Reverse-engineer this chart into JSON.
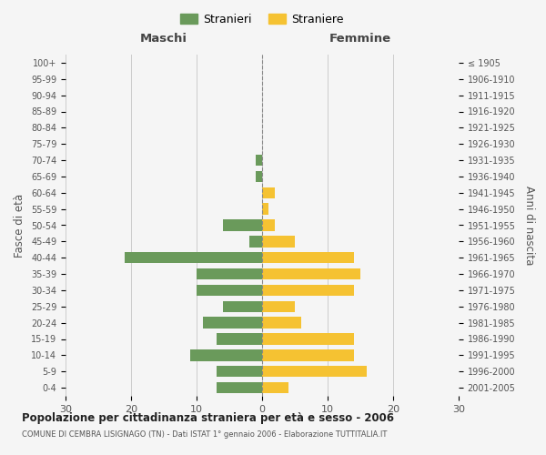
{
  "age_groups": [
    "0-4",
    "5-9",
    "10-14",
    "15-19",
    "20-24",
    "25-29",
    "30-34",
    "35-39",
    "40-44",
    "45-49",
    "50-54",
    "55-59",
    "60-64",
    "65-69",
    "70-74",
    "75-79",
    "80-84",
    "85-89",
    "90-94",
    "95-99",
    "100+"
  ],
  "birth_years": [
    "2001-2005",
    "1996-2000",
    "1991-1995",
    "1986-1990",
    "1981-1985",
    "1976-1980",
    "1971-1975",
    "1966-1970",
    "1961-1965",
    "1956-1960",
    "1951-1955",
    "1946-1950",
    "1941-1945",
    "1936-1940",
    "1931-1935",
    "1926-1930",
    "1921-1925",
    "1916-1920",
    "1911-1915",
    "1906-1910",
    "≤ 1905"
  ],
  "maschi": [
    7,
    7,
    11,
    7,
    9,
    6,
    10,
    10,
    21,
    2,
    6,
    0,
    0,
    1,
    1,
    0,
    0,
    0,
    0,
    0,
    0
  ],
  "femmine": [
    4,
    16,
    14,
    14,
    6,
    5,
    14,
    15,
    14,
    5,
    2,
    1,
    2,
    0,
    0,
    0,
    0,
    0,
    0,
    0,
    0
  ],
  "color_maschi": "#6a9a5b",
  "color_femmine": "#f5c232",
  "title": "Popolazione per cittadinanza straniera per età e sesso - 2006",
  "subtitle": "COMUNE DI CEMBRA LISIGNAGO (TN) - Dati ISTAT 1° gennaio 2006 - Elaborazione TUTTITALIA.IT",
  "xlabel_left": "Maschi",
  "xlabel_right": "Femmine",
  "ylabel_left": "Fasce di età",
  "ylabel_right": "Anni di nascita",
  "legend_maschi": "Stranieri",
  "legend_femmine": "Straniere",
  "xlim": 30,
  "bg_color": "#f5f5f5",
  "grid_color": "#cccccc",
  "bar_height": 0.7
}
